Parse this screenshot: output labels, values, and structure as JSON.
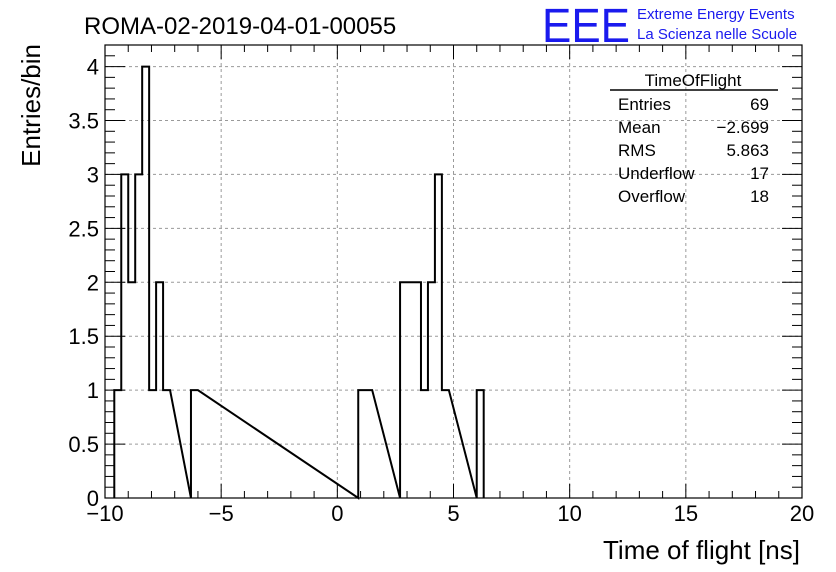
{
  "header": {
    "title": "ROMA-02-2019-04-01-00055",
    "logo_text": "EEE",
    "brand_line1": "Extreme Energy Events",
    "brand_line2": "La Scienza nelle Scuole",
    "brand_color": "#1a1aee"
  },
  "stats": {
    "title": "TimeOfFlight",
    "rows": [
      {
        "label": "Entries",
        "value": "69"
      },
      {
        "label": "Mean",
        "value": "−2.699"
      },
      {
        "label": "RMS",
        "value": "5.863"
      },
      {
        "label": "Underflow",
        "value": "17"
      },
      {
        "label": "Overflow",
        "value": "18"
      }
    ]
  },
  "chart_data": {
    "type": "bar",
    "style": "step-histogram",
    "xlabel": "Time of flight [ns]",
    "ylabel": "Entries/bin",
    "xlim": [
      -10,
      20
    ],
    "ylim": [
      0,
      4.2
    ],
    "grid": true,
    "xticks": [
      -10,
      -5,
      0,
      5,
      10,
      15,
      20
    ],
    "xtick_labels": [
      "−10",
      "−5",
      "0",
      "5",
      "10",
      "15",
      "20"
    ],
    "yticks": [
      0,
      0.5,
      1,
      1.5,
      2,
      2.5,
      3,
      3.5,
      4
    ],
    "ytick_labels": [
      "0",
      "0.5",
      "1",
      "1.5",
      "2",
      "2.5",
      "3",
      "3.5",
      "4"
    ],
    "bin_width": 0.3,
    "bins": [
      {
        "x0": -9.6,
        "x1": -9.3,
        "count": 1
      },
      {
        "x0": -9.3,
        "x1": -9.0,
        "count": 3
      },
      {
        "x0": -9.0,
        "x1": -8.7,
        "count": 2
      },
      {
        "x0": -8.7,
        "x1": -8.4,
        "count": 3
      },
      {
        "x0": -8.4,
        "x1": -8.1,
        "count": 4
      },
      {
        "x0": -8.1,
        "x1": -7.8,
        "count": 1
      },
      {
        "x0": -7.8,
        "x1": -7.5,
        "count": 2
      },
      {
        "x0": -7.5,
        "x1": -7.2,
        "count": 1
      },
      {
        "x0": -6.3,
        "x1": -6.0,
        "count": 1
      },
      {
        "x0": 0.9,
        "x1": 1.5,
        "count": 1
      },
      {
        "x0": 2.7,
        "x1": 3.6,
        "count": 2
      },
      {
        "x0": 3.6,
        "x1": 3.9,
        "count": 1
      },
      {
        "x0": 3.9,
        "x1": 4.2,
        "count": 2
      },
      {
        "x0": 4.2,
        "x1": 4.5,
        "count": 3
      },
      {
        "x0": 4.5,
        "x1": 4.8,
        "count": 1
      },
      {
        "x0": 6.0,
        "x1": 6.3,
        "count": 1
      }
    ]
  }
}
